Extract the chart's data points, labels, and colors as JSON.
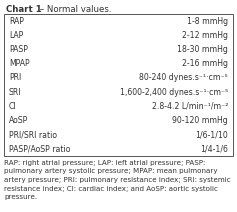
{
  "title_bold": "Chart 1",
  "title_normal": " – Normal values.",
  "rows": [
    [
      "RAP",
      "1-8 mmHg"
    ],
    [
      "LAP",
      "2-12 mmHg"
    ],
    [
      "PASP",
      "18-30 mmHg"
    ],
    [
      "MPAP",
      "2-16 mmHg"
    ],
    [
      "PRI",
      "80-240 dynes.s⁻¹·cm⁻⁵"
    ],
    [
      "SRI",
      "1,600-2,400 dynes.s⁻¹·cm⁻⁵"
    ],
    [
      "CI",
      "2.8-4.2 L/min⁻¹/m⁻²"
    ],
    [
      "AoSP",
      "90-120 mmHg"
    ],
    [
      "PRI/SRI ratio",
      "1/6-1/10"
    ],
    [
      "PASP/AoSP ratio",
      "1/4-1/6"
    ]
  ],
  "footnote_lines": [
    "RAP: right atrial pressure; LAP: left atrial pressure; PASP:",
    "pulmonary artery systolic pressure; MPAP: mean pulmonary",
    "artery pressure; PRI: pulmonary resistance index; SRI: systemic",
    "resistance index; CI: cardiac index; and AoSP: aortic systolic",
    "pressure."
  ],
  "title_fontsize": 6.2,
  "row_fontsize": 5.6,
  "footnote_fontsize": 5.1,
  "bg_color": "#ffffff",
  "border_color": "#555555",
  "text_color": "#333333"
}
